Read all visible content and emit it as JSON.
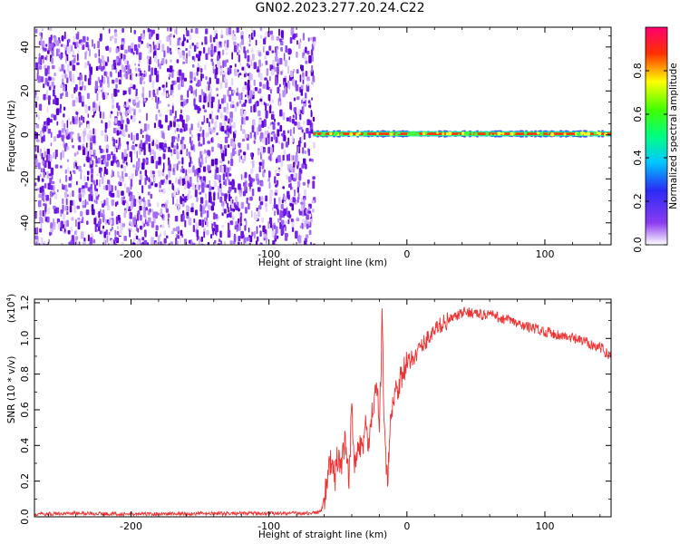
{
  "title": "GN02.2023.277.20.24.C22",
  "chart_data": [
    {
      "type": "heatmap",
      "xlabel": "Height of straight line (km)",
      "ylabel": "Frequency (Hz)",
      "xlim": [
        -270,
        148
      ],
      "ylim": [
        -50,
        49
      ],
      "xticks": [
        -200,
        -100,
        0,
        100
      ],
      "yticks": [
        -40,
        -20,
        0,
        20,
        40
      ],
      "noise_region_x": [
        -270,
        -68
      ],
      "signal_region_x": [
        -68,
        148
      ],
      "signal_center_freq": 0.5,
      "colorbar": {
        "label": "Normalized spectral amplitude",
        "range": [
          0,
          1
        ],
        "ticks": [
          0.0,
          0.2,
          0.4,
          0.6,
          0.8
        ],
        "tick_labels": [
          "0.0",
          "0.2",
          "0.4",
          "0.6",
          "0.8"
        ]
      }
    },
    {
      "type": "line",
      "xlabel": "Height of straight line (km)",
      "ylabel": "SNR (10 * v/v)",
      "scale_label": "(x10",
      "scale_exponent": "4",
      "scale_suffix": ")",
      "xlim": [
        -270,
        148
      ],
      "ylim": [
        0,
        1.22
      ],
      "xticks": [
        -200,
        -100,
        0,
        100
      ],
      "yticks": [
        0.0,
        0.2,
        0.4,
        0.6,
        0.8,
        1.0,
        1.2
      ],
      "ytick_labels": [
        "0.0",
        "0.2",
        "0.4",
        "0.6",
        "0.8",
        "1.0",
        "1.2"
      ],
      "series": [
        {
          "color": "#ee3333",
          "x": [
            -270,
            -240,
            -200,
            -150,
            -100,
            -70,
            -62,
            -58,
            -55,
            -52,
            -50,
            -48,
            -45,
            -42,
            -40,
            -38,
            -35,
            -32,
            -30,
            -28,
            -25,
            -22,
            -20,
            -18,
            -16,
            -14,
            -12,
            -10,
            -8,
            -5,
            0,
            5,
            10,
            15,
            20,
            25,
            30,
            35,
            40,
            45,
            50,
            55,
            60,
            65,
            70,
            75,
            80,
            90,
            100,
            110,
            120,
            130,
            140,
            148
          ],
          "y": [
            0.015,
            0.02,
            0.015,
            0.018,
            0.02,
            0.02,
            0.03,
            0.2,
            0.3,
            0.22,
            0.35,
            0.25,
            0.4,
            0.2,
            0.62,
            0.3,
            0.45,
            0.38,
            0.55,
            0.35,
            0.6,
            0.72,
            0.5,
            1.08,
            0.4,
            0.15,
            0.6,
            0.65,
            0.7,
            0.78,
            0.85,
            0.9,
            0.95,
            1.0,
            1.04,
            1.08,
            1.1,
            1.12,
            1.14,
            1.15,
            1.14,
            1.13,
            1.14,
            1.12,
            1.11,
            1.1,
            1.08,
            1.06,
            1.04,
            1.02,
            1.0,
            0.98,
            0.95,
            0.9
          ]
        }
      ]
    }
  ]
}
